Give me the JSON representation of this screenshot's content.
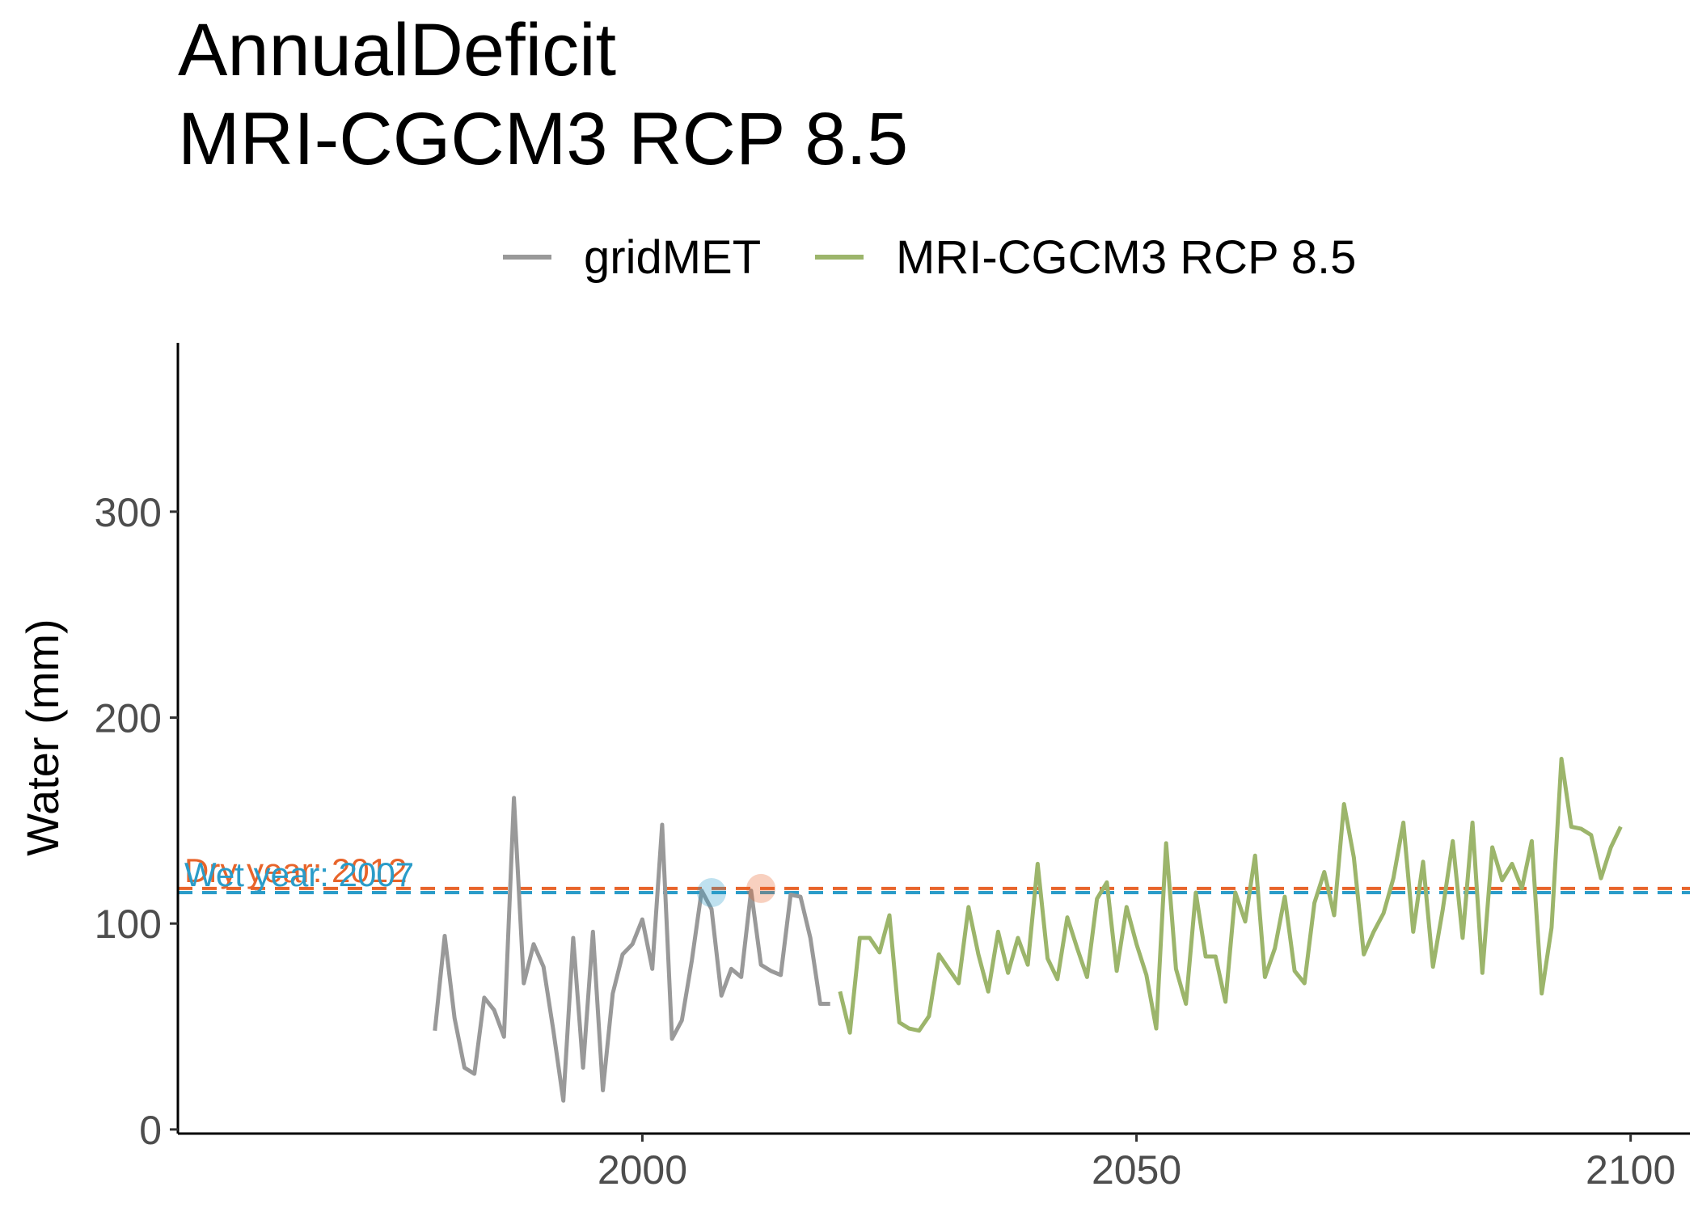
{
  "chart_data": {
    "type": "line",
    "title": "AnnualDeficit",
    "subtitle": "MRI-CGCM3 RCP 8.5",
    "xlabel": "",
    "ylabel": "Water (mm)",
    "xlim": [
      1953,
      2106
    ],
    "ylim": [
      -2,
      382
    ],
    "xticks": [
      2000,
      2050,
      2100
    ],
    "yticks": [
      0,
      100,
      200,
      300
    ],
    "grid": false,
    "legend_position": "top",
    "series": [
      {
        "name": "gridMET",
        "color": "#999999",
        "x": [
          1979,
          1980,
          1981,
          1982,
          1983,
          1984,
          1985,
          1986,
          1987,
          1988,
          1989,
          1990,
          1991,
          1992,
          1993,
          1994,
          1995,
          1996,
          1997,
          1998,
          1999,
          2000,
          2001,
          2002,
          2003,
          2004,
          2005,
          2006,
          2007,
          2008,
          2009,
          2010,
          2011,
          2012,
          2013,
          2014,
          2015,
          2016,
          2017,
          2018,
          2019
        ],
        "values": [
          48,
          94,
          54,
          30,
          27,
          64,
          58,
          45,
          161,
          71,
          90,
          79,
          48,
          14,
          93,
          30,
          96,
          19,
          66,
          85,
          90,
          102,
          78,
          148,
          44,
          53,
          82,
          116,
          107,
          65,
          78,
          74,
          116,
          80,
          77,
          75,
          114,
          113,
          93,
          61,
          61
        ]
      },
      {
        "name": "MRI-CGCM3 RCP 8.5",
        "color": "#9cb56b",
        "x": [
          2020,
          2021,
          2022,
          2023,
          2024,
          2025,
          2026,
          2027,
          2028,
          2029,
          2030,
          2031,
          2032,
          2033,
          2034,
          2035,
          2036,
          2037,
          2038,
          2039,
          2040,
          2041,
          2042,
          2043,
          2044,
          2045,
          2046,
          2047,
          2048,
          2049,
          2050,
          2051,
          2052,
          2053,
          2054,
          2055,
          2056,
          2057,
          2058,
          2059,
          2060,
          2061,
          2062,
          2063,
          2064,
          2065,
          2066,
          2067,
          2068,
          2069,
          2070,
          2071,
          2072,
          2073,
          2074,
          2075,
          2076,
          2077,
          2078,
          2079,
          2080,
          2081,
          2082,
          2083,
          2084,
          2085,
          2086,
          2087,
          2088,
          2089,
          2090,
          2091,
          2092,
          2093,
          2094,
          2095,
          2096,
          2097,
          2098,
          2099
        ],
        "values": [
          67,
          47,
          93,
          93,
          86,
          104,
          52,
          49,
          48,
          55,
          85,
          78,
          71,
          108,
          85,
          67,
          96,
          76,
          93,
          80,
          129,
          83,
          73,
          103,
          88,
          74,
          112,
          120,
          77,
          108,
          90,
          75,
          49,
          139,
          78,
          61,
          115,
          84,
          84,
          62,
          115,
          101,
          133,
          74,
          88,
          113,
          77,
          71,
          110,
          125,
          104,
          158,
          132,
          85,
          96,
          105,
          122,
          149,
          96,
          130,
          79,
          107,
          140,
          93,
          149,
          76,
          137,
          121,
          129,
          117,
          140,
          66,
          98,
          180,
          147,
          146,
          143,
          122,
          137,
          147
        ]
      }
    ],
    "reference_lines": [
      {
        "label": "Dry year: 2012",
        "value": 117,
        "year": 2012,
        "color": "#e8642a"
      },
      {
        "label": "Wet year: 2007",
        "value": 115,
        "year": 2007,
        "color": "#2a9cc9"
      }
    ]
  }
}
